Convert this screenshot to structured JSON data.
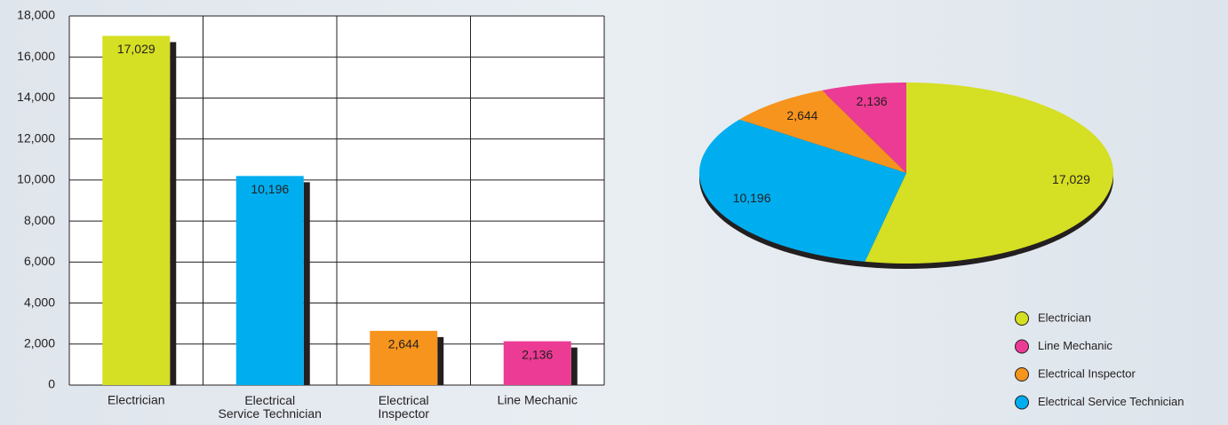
{
  "chart_data": [
    {
      "type": "bar",
      "categories": [
        "Electrician",
        "Electrical Service Technician",
        "Electrical Inspector",
        "Line Mechanic"
      ],
      "values": [
        17029,
        10196,
        2644,
        2136
      ],
      "value_labels": [
        "17,029",
        "10,196",
        "2,644",
        "2,136"
      ],
      "colors": [
        "#d5df23",
        "#00aeef",
        "#f7941d",
        "#ec3b95"
      ],
      "ylim": [
        0,
        18000
      ],
      "yticks": [
        0,
        {
          "value": 2000,
          "label": "2,000"
        },
        {
          "value": 4000,
          "label": "4,000"
        },
        {
          "value": 6000,
          "label": "6,000"
        },
        {
          "value": 8000,
          "label": "8,000"
        },
        {
          "value": 10000,
          "label": "10,000"
        },
        {
          "value": 12000,
          "label": "12,000"
        },
        {
          "value": 14000,
          "label": "14,000"
        },
        {
          "value": 16000,
          "label": "16,000"
        },
        {
          "value": 18000,
          "label": "18,000"
        }
      ],
      "grid": true
    },
    {
      "type": "pie",
      "categories": [
        "Electrician",
        "Line Mechanic",
        "Electrical Inspector",
        "Electrical Service Technician"
      ],
      "values": [
        17029,
        2136,
        2644,
        10196
      ],
      "value_labels": [
        "17,029",
        "2,136",
        "2,644",
        "10,196"
      ],
      "colors": [
        "#d5df23",
        "#ec3b95",
        "#f7941d",
        "#00aeef"
      ],
      "legend": "bottom-right"
    }
  ]
}
